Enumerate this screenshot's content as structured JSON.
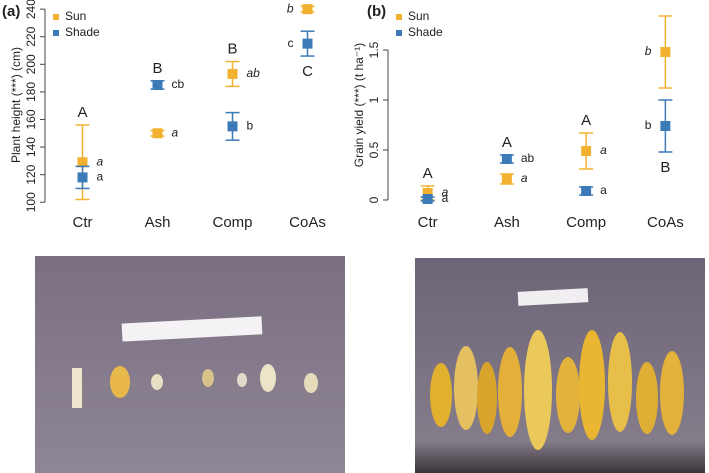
{
  "chart_data": [
    {
      "type": "dot",
      "panel": "(a)",
      "y_label": "Plant height (***) (cm)",
      "categories": [
        "Ctr",
        "Ash",
        "Comp",
        "CoAs"
      ],
      "ylim": [
        98,
        243
      ],
      "yticks": [
        100,
        120,
        140,
        160,
        180,
        200,
        220,
        240
      ],
      "legend": "top-left",
      "group_letters": [
        "A",
        "B",
        "B",
        "C"
      ],
      "series": [
        {
          "name": "Sun",
          "color": "#f2b230",
          "values": [
            129,
            150,
            193,
            240
          ],
          "errors": [
            27,
            2,
            9,
            2
          ],
          "letters": [
            "a",
            "a",
            "ab",
            "b"
          ],
          "italic": true
        },
        {
          "name": "Shade",
          "color": "#3d7ab8",
          "values": [
            118,
            185,
            155,
            215
          ],
          "errors": [
            8,
            3,
            10,
            9
          ],
          "letters": [
            "a",
            "cb",
            "b",
            "c"
          ],
          "italic": false
        }
      ]
    },
    {
      "type": "dot",
      "panel": "(b)",
      "y_label": "Grain yield (***) (t ha⁻¹)",
      "categories": [
        "Ctr",
        "Ash",
        "Comp",
        "CoAs"
      ],
      "ylim": [
        -0.05,
        1.95
      ],
      "yticks": [
        0,
        0.5,
        1,
        1.5
      ],
      "legend": "top-left",
      "group_letters": [
        "A",
        "A",
        "A",
        "B"
      ],
      "series": [
        {
          "name": "Sun",
          "color": "#f2b230",
          "values": [
            0.07,
            0.21,
            0.49,
            1.48
          ],
          "errors": [
            0.07,
            0.05,
            0.18,
            0.36
          ],
          "letters": [
            "a",
            "a",
            "a",
            "b"
          ],
          "italic": true
        },
        {
          "name": "Shade",
          "color": "#3d7ab8",
          "values": [
            0.01,
            0.41,
            0.09,
            0.74
          ],
          "errors": [
            0.02,
            0.04,
            0.04,
            0.26
          ],
          "letters": [
            "a",
            "ab",
            "a",
            "b"
          ],
          "italic": false
        }
      ]
    }
  ]
}
